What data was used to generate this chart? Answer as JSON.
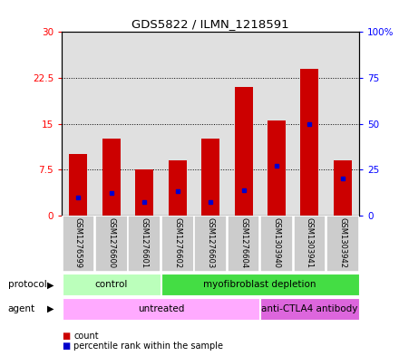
{
  "title": "GDS5822 / ILMN_1218591",
  "samples": [
    "GSM1276599",
    "GSM1276600",
    "GSM1276601",
    "GSM1276602",
    "GSM1276603",
    "GSM1276604",
    "GSM1303940",
    "GSM1303941",
    "GSM1303942"
  ],
  "counts": [
    10.0,
    12.5,
    7.5,
    9.0,
    12.5,
    21.0,
    15.5,
    24.0,
    9.0
  ],
  "percentile_ranks": [
    10.0,
    12.0,
    7.5,
    13.0,
    7.5,
    13.5,
    27.0,
    50.0,
    20.0
  ],
  "ylim_left": [
    0,
    30
  ],
  "ylim_right": [
    0,
    100
  ],
  "yticks_left": [
    0,
    7.5,
    15,
    22.5,
    30
  ],
  "yticks_right": [
    0,
    25,
    50,
    75,
    100
  ],
  "bar_color": "#cc0000",
  "percentile_color": "#0000cc",
  "background_color": "#ffffff",
  "plot_bg": "#e0e0e0",
  "protocol_labels": [
    {
      "text": "control",
      "start": 0,
      "end": 3,
      "color": "#bbffbb"
    },
    {
      "text": "myofibroblast depletion",
      "start": 3,
      "end": 9,
      "color": "#44dd44"
    }
  ],
  "agent_labels": [
    {
      "text": "untreated",
      "start": 0,
      "end": 6,
      "color": "#ffaaff"
    },
    {
      "text": "anti-CTLA4 antibody",
      "start": 6,
      "end": 9,
      "color": "#dd66dd"
    }
  ],
  "legend_count_label": "count",
  "legend_percentile_label": "percentile rank within the sample",
  "protocol_row_label": "protocol",
  "agent_row_label": "agent"
}
